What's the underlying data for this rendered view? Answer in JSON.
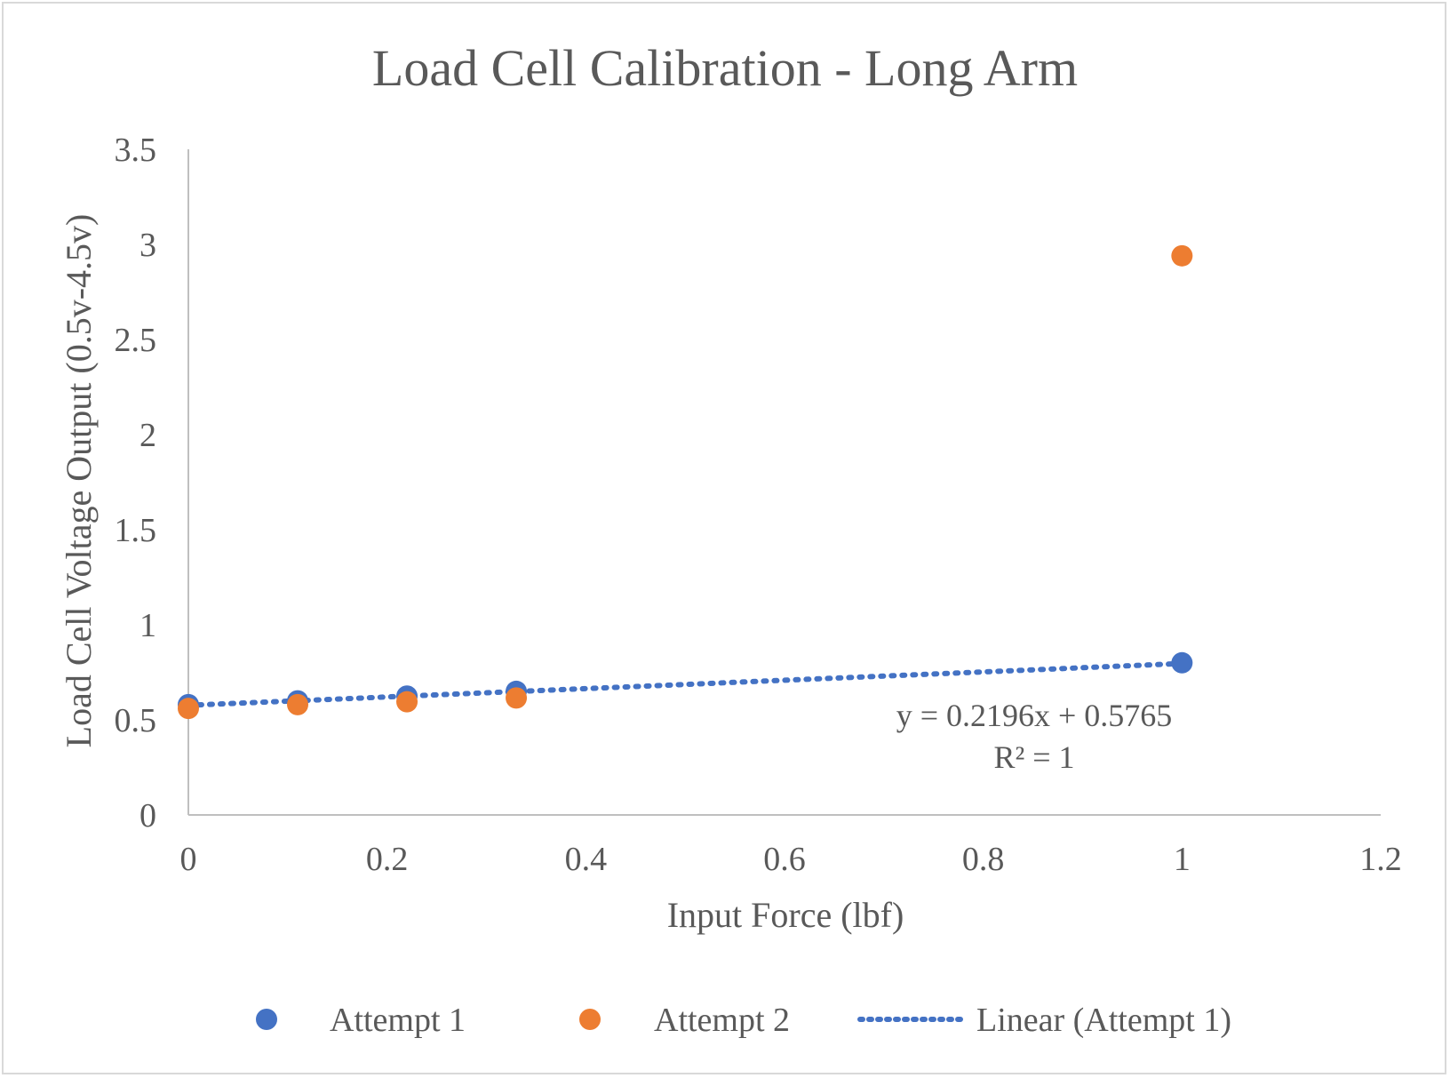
{
  "chart_data": {
    "type": "scatter",
    "title": "Load Cell Calibration - Long Arm",
    "xlabel": "Input Force (lbf)",
    "ylabel": "Load Cell Voltage Output (0.5v-4.5v)",
    "xlim": [
      0,
      1.2
    ],
    "ylim": [
      0,
      3.5
    ],
    "xticks": [
      "0",
      "0.2",
      "0.4",
      "0.6",
      "0.8",
      "1",
      "1.2"
    ],
    "yticks": [
      "0",
      "0.5",
      "1",
      "1.5",
      "2",
      "2.5",
      "3",
      "3.5"
    ],
    "grid": false,
    "legend_position": "bottom",
    "series": [
      {
        "name": "Attempt 1",
        "color": "#4472c4",
        "points": [
          {
            "x": 0,
            "y": 0.58
          },
          {
            "x": 0.11,
            "y": 0.6
          },
          {
            "x": 0.22,
            "y": 0.625
          },
          {
            "x": 0.33,
            "y": 0.65
          },
          {
            "x": 1,
            "y": 0.8
          }
        ]
      },
      {
        "name": "Attempt 2",
        "color": "#ed7d31",
        "points": [
          {
            "x": 0,
            "y": 0.56
          },
          {
            "x": 0.11,
            "y": 0.58
          },
          {
            "x": 0.22,
            "y": 0.595
          },
          {
            "x": 0.33,
            "y": 0.615
          },
          {
            "x": 1,
            "y": 2.94
          }
        ]
      }
    ],
    "trendline": {
      "name": "Linear (Attempt 1)",
      "color": "#4472c4",
      "slope": 0.2196,
      "intercept": 0.5765,
      "x_range": [
        0,
        1
      ],
      "equation": "y = 0.2196x + 0.5765",
      "r_squared": "R² = 1"
    },
    "colors": {
      "axis": "#bfbfbf",
      "text": "#595959",
      "frame": "#d9d9d9"
    }
  }
}
